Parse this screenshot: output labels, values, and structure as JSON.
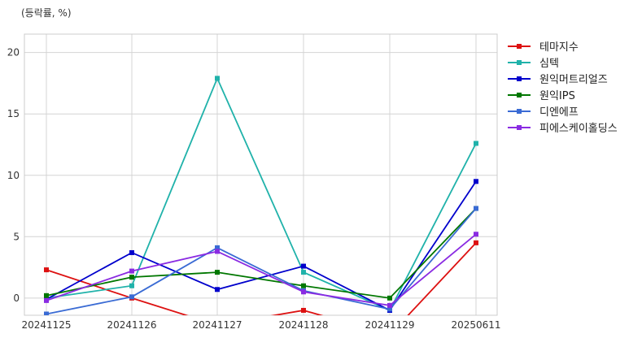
{
  "chart_data": {
    "type": "line",
    "title": "",
    "unit_label": "(등락률, %)",
    "xlabel": "",
    "ylabel": "",
    "categories": [
      "20241125",
      "20241126",
      "20241127",
      "20241128",
      "20241129",
      "20250611"
    ],
    "ylim": [
      -1.4,
      21.5
    ],
    "yticks": [
      0,
      5,
      10,
      15,
      20
    ],
    "grid": true,
    "legend_position": "right",
    "series": [
      {
        "name": "테마지수",
        "color": "#dd1111",
        "values": [
          2.3,
          0.0,
          -2.2,
          -1.0,
          -3.0,
          4.5
        ]
      },
      {
        "name": "심텍",
        "color": "#20b2aa",
        "values": [
          0.0,
          1.0,
          17.9,
          2.1,
          -1.0,
          12.6
        ]
      },
      {
        "name": "원익머트리얼즈",
        "color": "#0000cc",
        "values": [
          -0.1,
          3.7,
          0.7,
          2.6,
          -1.0,
          9.5
        ]
      },
      {
        "name": "원익IPS",
        "color": "#007700",
        "values": [
          0.2,
          1.7,
          2.1,
          1.0,
          0.0,
          7.3
        ]
      },
      {
        "name": "디엔에프",
        "color": "#3a6bd4",
        "values": [
          -1.3,
          0.1,
          4.1,
          0.6,
          -0.9,
          7.3
        ]
      },
      {
        "name": "피에스케이홀딩스",
        "color": "#8a2be2",
        "values": [
          -0.2,
          2.2,
          3.8,
          0.5,
          -0.6,
          5.2
        ]
      }
    ]
  }
}
